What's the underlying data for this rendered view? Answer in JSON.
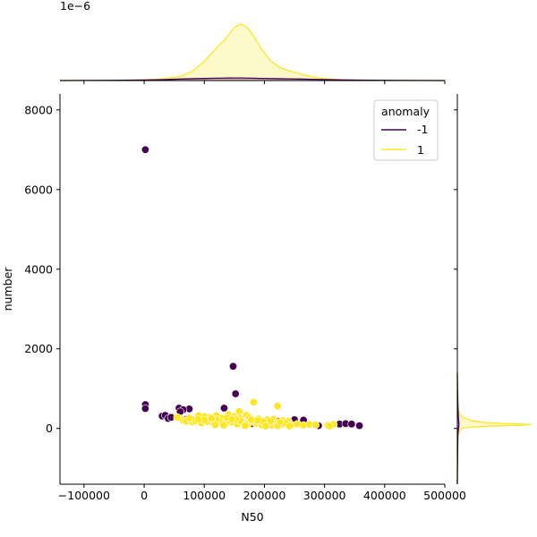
{
  "chart_data": {
    "type": "scatter",
    "title": "",
    "xlabel": "N50",
    "ylabel": "number",
    "xlim": [
      -140000,
      500000
    ],
    "ylim": [
      -1400,
      8400
    ],
    "x_ticks": [
      -100000,
      0,
      100000,
      200000,
      300000,
      400000,
      500000
    ],
    "y_ticks": [
      0,
      2000,
      4000,
      6000,
      8000
    ],
    "x_tick_labels": [
      "−100000",
      "0",
      "100000",
      "200000",
      "300000",
      "400000",
      "500000"
    ],
    "y_tick_labels": [
      "0",
      "2000",
      "4000",
      "6000",
      "8000"
    ],
    "grid": false,
    "legend": {
      "title": "anomaly",
      "placement": "top-right",
      "entries": [
        {
          "label": "-1",
          "color": "#440154"
        },
        {
          "label": "1",
          "color": "#fde725"
        }
      ]
    },
    "top_marginal": {
      "type": "kde",
      "scale_label": "1e−6",
      "ylim": [
        0,
        8.3
      ],
      "x": [
        -140000,
        -100000,
        -50000,
        0,
        30000,
        60000,
        80000,
        100000,
        120000,
        135000,
        150000,
        160000,
        170000,
        180000,
        195000,
        210000,
        225000,
        240000,
        260000,
        280000,
        300000,
        330000,
        360000,
        400000,
        450000,
        500000
      ],
      "anomaly_1": [
        0,
        0.01,
        0.03,
        0.08,
        0.2,
        0.5,
        1.1,
        2.3,
        3.9,
        5.0,
        6.4,
        6.8,
        6.5,
        5.6,
        3.8,
        2.4,
        1.6,
        1.2,
        0.8,
        0.45,
        0.22,
        0.08,
        0.03,
        0.01,
        0,
        0
      ],
      "anomaly_neg1": [
        0,
        0.01,
        0.02,
        0.06,
        0.1,
        0.18,
        0.22,
        0.25,
        0.28,
        0.3,
        0.31,
        0.31,
        0.3,
        0.28,
        0.26,
        0.24,
        0.22,
        0.2,
        0.18,
        0.15,
        0.12,
        0.08,
        0.05,
        0.02,
        0.01,
        0
      ]
    },
    "right_marginal": {
      "type": "kde",
      "xmax": 1,
      "y": [
        -1400,
        -1000,
        -600,
        -300,
        -150,
        -50,
        0,
        30,
        60,
        80,
        100,
        120,
        150,
        200,
        260,
        320,
        400,
        500,
        700,
        1000,
        1400
      ],
      "anomaly_1": [
        0,
        0,
        0,
        0,
        0.01,
        0.03,
        0.06,
        0.15,
        0.45,
        0.88,
        1.0,
        0.7,
        0.35,
        0.18,
        0.1,
        0.05,
        0.02,
        0.01,
        0,
        0,
        0
      ],
      "anomaly_neg1": [
        0,
        0.002,
        0.004,
        0.006,
        0.008,
        0.012,
        0.016,
        0.018,
        0.02,
        0.02,
        0.02,
        0.02,
        0.019,
        0.017,
        0.015,
        0.013,
        0.011,
        0.009,
        0.006,
        0.003,
        0
      ]
    },
    "series": [
      {
        "name": "-1",
        "color": "#440154",
        "points": [
          [
            2000,
            7000
          ],
          [
            2000,
            600
          ],
          [
            2000,
            500
          ],
          [
            148000,
            1560
          ],
          [
            152000,
            870
          ],
          [
            133000,
            510
          ],
          [
            58000,
            510
          ],
          [
            75000,
            490
          ],
          [
            65000,
            470
          ],
          [
            60000,
            420
          ],
          [
            30000,
            310
          ],
          [
            35000,
            330
          ],
          [
            40000,
            250
          ],
          [
            45000,
            280
          ],
          [
            70000,
            230
          ],
          [
            80000,
            210
          ],
          [
            120000,
            150
          ],
          [
            130000,
            140
          ],
          [
            180000,
            120
          ],
          [
            200000,
            180
          ],
          [
            210000,
            160
          ],
          [
            225000,
            180
          ],
          [
            250000,
            220
          ],
          [
            265000,
            210
          ],
          [
            290000,
            70
          ],
          [
            325000,
            110
          ],
          [
            335000,
            120
          ],
          [
            345000,
            110
          ],
          [
            358000,
            70
          ]
        ]
      },
      {
        "name": "1",
        "color": "#fde725",
        "points": [
          [
            182000,
            660
          ],
          [
            222000,
            560
          ],
          [
            158000,
            430
          ],
          [
            170000,
            330
          ],
          [
            140000,
            350
          ],
          [
            120000,
            320
          ],
          [
            100000,
            300
          ],
          [
            90000,
            320
          ],
          [
            110000,
            280
          ],
          [
            130000,
            260
          ],
          [
            150000,
            300
          ],
          [
            160000,
            250
          ],
          [
            175000,
            270
          ],
          [
            190000,
            240
          ],
          [
            205000,
            220
          ],
          [
            215000,
            230
          ],
          [
            230000,
            200
          ],
          [
            240000,
            180
          ],
          [
            60000,
            250
          ],
          [
            65000,
            200
          ],
          [
            70000,
            180
          ],
          [
            80000,
            160
          ],
          [
            85000,
            190
          ],
          [
            95000,
            140
          ],
          [
            105000,
            170
          ],
          [
            115000,
            130
          ],
          [
            125000,
            180
          ],
          [
            135000,
            120
          ],
          [
            145000,
            160
          ],
          [
            155000,
            110
          ],
          [
            165000,
            150
          ],
          [
            172000,
            100
          ],
          [
            185000,
            130
          ],
          [
            195000,
            90
          ],
          [
            200000,
            140
          ],
          [
            212000,
            80
          ],
          [
            220000,
            120
          ],
          [
            228000,
            100
          ],
          [
            235000,
            130
          ],
          [
            245000,
            90
          ],
          [
            255000,
            110
          ],
          [
            265000,
            80
          ],
          [
            275000,
            100
          ],
          [
            285000,
            90
          ],
          [
            100000,
            210
          ],
          [
            120000,
            220
          ],
          [
            140000,
            200
          ],
          [
            160000,
            190
          ],
          [
            180000,
            180
          ],
          [
            198000,
            170
          ],
          [
            152000,
            240
          ],
          [
            138000,
            270
          ],
          [
            112000,
            250
          ],
          [
            90000,
            230
          ],
          [
            75000,
            260
          ],
          [
            55000,
            280
          ],
          [
            305000,
            80
          ],
          [
            315000,
            100
          ],
          [
            308000,
            60
          ],
          [
            242000,
            60
          ],
          [
            222000,
            70
          ],
          [
            202000,
            60
          ],
          [
            168000,
            70
          ],
          [
            132000,
            80
          ],
          [
            118000,
            90
          ],
          [
            188000,
            200
          ],
          [
            210000,
            190
          ],
          [
            226000,
            160
          ],
          [
            178000,
            220
          ],
          [
            146000,
            230
          ]
        ]
      }
    ]
  }
}
